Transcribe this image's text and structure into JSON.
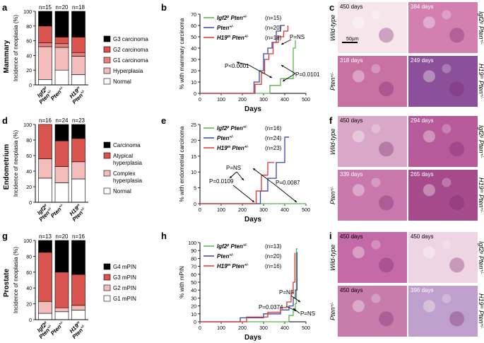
{
  "panel_letters": [
    "a",
    "b",
    "c",
    "d",
    "e",
    "f",
    "g",
    "h",
    "i"
  ],
  "colors": {
    "dark": "#000000",
    "c2": "#d9534f",
    "c3": "#e7807d",
    "c4": "#f2bcbb",
    "white": "#ffffff",
    "green": "#5ab04a",
    "blue": "#3a45a8",
    "red": "#e5322d"
  },
  "row_labels": [
    "Mammary",
    "Endometrium",
    "Prostate"
  ],
  "chart_data": [
    {
      "id": "a",
      "type": "bar",
      "stacked": true,
      "ylabel": "Incidence of neoplasia (%)",
      "ylim": [
        0,
        100
      ],
      "yticks": [
        "0",
        "20",
        "40",
        "60",
        "80",
        "100"
      ],
      "groups": [
        {
          "l1": "Igf2",
          "sup": "p",
          "l2": "Pten",
          "sup2": "+/-"
        },
        {
          "l1": "Pten",
          "sup": "+/-",
          "l2": "",
          "sup2": ""
        },
        {
          "l1": "H19",
          "sup": "m",
          "l2": "Pten",
          "sup2": "+/-"
        }
      ],
      "n_labels": [
        "n=15",
        "n=20",
        "n=18"
      ],
      "series": [
        {
          "name": "Normal",
          "values": [
            7,
            20,
            14
          ]
        },
        {
          "name": "Hyperplasia",
          "values": [
            45,
            31,
            25
          ]
        },
        {
          "name": "G1 carcinoma",
          "values": [
            5,
            5,
            5
          ]
        },
        {
          "name": "G2 carcinoma",
          "values": [
            23,
            9,
            21
          ]
        },
        {
          "name": "G3 carcinoma",
          "values": [
            20,
            35,
            35
          ]
        }
      ]
    },
    {
      "id": "d",
      "type": "bar",
      "stacked": true,
      "ylabel": "Incidence of neoplasia (%)",
      "ylim": [
        0,
        100
      ],
      "yticks": [
        "0",
        "20",
        "40",
        "60",
        "80",
        "100"
      ],
      "groups": [
        {
          "l1": "Igf2",
          "sup": "p",
          "l2": "Pten",
          "sup2": "+/-"
        },
        {
          "l1": "Pten",
          "sup": "+/-",
          "l2": "",
          "sup2": ""
        },
        {
          "l1": "H19",
          "sup": "m",
          "l2": "Pten",
          "sup2": "+/-"
        }
      ],
      "n_labels": [
        "n=16",
        "n=24",
        "n=23"
      ],
      "series": [
        {
          "name": "Normal",
          "values": [
            31,
            25,
            30
          ]
        },
        {
          "name": "Complex hyperplasia",
          "values": [
            25,
            21,
            22
          ]
        },
        {
          "name": "Atypical hyperplasia",
          "values": [
            44,
            33,
            30
          ]
        },
        {
          "name": "Carcinoma",
          "values": [
            0,
            21,
            18
          ]
        }
      ]
    },
    {
      "id": "g",
      "type": "bar",
      "stacked": true,
      "ylabel": "Incidence of neoplasia (%)",
      "ylim": [
        0,
        100
      ],
      "yticks": [
        "0",
        "20",
        "40",
        "60",
        "80",
        "100"
      ],
      "groups": [
        {
          "l1": "Igf2",
          "sup": "p",
          "l2": "Pten",
          "sup2": "+/-"
        },
        {
          "l1": "Pten",
          "sup": "+/-",
          "l2": "",
          "sup2": ""
        },
        {
          "l1": "H19",
          "sup": "m",
          "l2": "Pten",
          "sup2": "+/-"
        }
      ],
      "n_labels": [
        "n=13",
        "n=20",
        "n=16"
      ],
      "series": [
        {
          "name": "G1 mPIN",
          "values": [
            8,
            10,
            12
          ]
        },
        {
          "name": "G2 mPIN",
          "values": [
            15,
            5,
            6
          ]
        },
        {
          "name": "G3 mPIN",
          "values": [
            62,
            45,
            39
          ]
        },
        {
          "name": "G4 mPIN",
          "values": [
            15,
            40,
            43
          ]
        }
      ]
    },
    {
      "id": "b",
      "type": "line",
      "step": true,
      "ylabel": "% with mammary carcinoma",
      "xlabel": "Days",
      "xlim": [
        0,
        500
      ],
      "ylim": [
        0,
        70
      ],
      "xticks": [
        0,
        100,
        200,
        300,
        400,
        500
      ],
      "yticks": [
        0,
        10,
        20,
        30,
        40,
        50,
        60,
        70
      ],
      "series": [
        {
          "name": "Igf2",
          "sup": "p",
          "name2": " Pten",
          "sup2": "+/-",
          "n": "(n=15)",
          "color": "green",
          "x": [
            0,
            290,
            330,
            360,
            380,
            410,
            440,
            450
          ],
          "y": [
            0,
            0,
            7,
            7,
            13,
            13,
            40,
            47
          ]
        },
        {
          "name": "Pten",
          "sup": "+/-",
          "name2": "",
          "sup2": "",
          "n": "(n=20)",
          "color": "blue",
          "x": [
            0,
            255,
            280,
            300,
            320,
            340,
            360,
            380,
            400
          ],
          "y": [
            0,
            10,
            20,
            35,
            40,
            45,
            55,
            60,
            60
          ]
        },
        {
          "name": "H19",
          "sup": "m",
          "name2": " Pten",
          "sup2": "+/-",
          "n": "(n=18)",
          "color": "red",
          "x": [
            0,
            260,
            290,
            305,
            325,
            345,
            370,
            395,
            415
          ],
          "y": [
            0,
            8,
            18,
            30,
            35,
            45,
            50,
            55,
            60
          ]
        }
      ],
      "annotations": [
        "P=NS",
        "P<0.0001",
        "P=0.0101"
      ]
    },
    {
      "id": "e",
      "type": "line",
      "step": true,
      "ylabel": "% with endometrial carcinoma",
      "xlabel": "Days",
      "xlim": [
        0,
        500
      ],
      "ylim": [
        0,
        25
      ],
      "xticks": [
        0,
        100,
        200,
        300,
        400,
        500
      ],
      "yticks": [
        0,
        5,
        10,
        15,
        20,
        25
      ],
      "series": [
        {
          "name": "Igf2",
          "sup": "p",
          "name2": " Pten",
          "sup2": "+/-",
          "n": "(n=16)",
          "color": "green",
          "x": [
            0,
            500
          ],
          "y": [
            0,
            0
          ]
        },
        {
          "name": "Pten",
          "sup": "+/-",
          "name2": "",
          "sup2": "",
          "n": "(n=24)",
          "color": "blue",
          "x": [
            0,
            285,
            320,
            360,
            400,
            420
          ],
          "y": [
            0,
            4,
            8,
            13,
            21,
            21
          ]
        },
        {
          "name": "H19",
          "sup": "m",
          "name2": " Pten",
          "sup2": "+/-",
          "n": "(n=23)",
          "color": "red",
          "x": [
            0,
            265,
            290,
            320,
            350
          ],
          "y": [
            0,
            4,
            9,
            13,
            13
          ]
        }
      ],
      "annotations": [
        "P=NS",
        "P=0.0109",
        "P=0.0087"
      ]
    },
    {
      "id": "h",
      "type": "line",
      "step": true,
      "ylabel": "% with mPIN",
      "xlabel": "Days",
      "xlim": [
        0,
        500
      ],
      "ylim": [
        0,
        100
      ],
      "xticks": [
        0,
        100,
        200,
        300,
        400,
        500
      ],
      "yticks": [
        0,
        10,
        20,
        30,
        40,
        50,
        60,
        70,
        80,
        90,
        100
      ],
      "series": [
        {
          "name": "Igf2",
          "sup": "p",
          "name2": " Pten",
          "sup2": "+/-",
          "n": "(n=13)",
          "color": "green",
          "x": [
            0,
            400,
            420,
            440,
            450,
            455,
            460
          ],
          "y": [
            0,
            0,
            8,
            15,
            23,
            92,
            92
          ]
        },
        {
          "name": "Pten",
          "sup": "+/-",
          "name2": "",
          "sup2": "",
          "n": "(n=20)",
          "color": "blue",
          "x": [
            0,
            190,
            300,
            380,
            420,
            440,
            450,
            458
          ],
          "y": [
            0,
            5,
            10,
            15,
            20,
            30,
            40,
            88
          ]
        },
        {
          "name": "H19",
          "sup": "m",
          "name2": " Pten",
          "sup2": "+/-",
          "n": "(n=16)",
          "color": "red",
          "x": [
            0,
            220,
            320,
            380,
            410,
            430,
            440,
            448
          ],
          "y": [
            0,
            6,
            12,
            18,
            25,
            37,
            50,
            87
          ]
        }
      ],
      "annotations": [
        "P=NS",
        "P=0.0374",
        "P=NS"
      ]
    }
  ],
  "histology": {
    "c": [
      {
        "label": "450 days",
        "scale": "50µm"
      },
      {
        "label": "384 days"
      },
      {
        "label": "318 days"
      },
      {
        "label": "249 days"
      }
    ],
    "f": [
      {
        "label": "450 days"
      },
      {
        "label": "294 days"
      },
      {
        "label": "339 days"
      },
      {
        "label": "265 days"
      }
    ],
    "i": [
      {
        "label": "450 days"
      },
      {
        "label": "450 days"
      },
      {
        "label": "450 days"
      },
      {
        "label": "396 days"
      }
    ],
    "row_genotypes": [
      "Wild-type",
      "Pten",
      "Igf2",
      "H19"
    ],
    "sup": {
      "pten": "+/-",
      "igf2": "p",
      "h19": "m"
    }
  }
}
